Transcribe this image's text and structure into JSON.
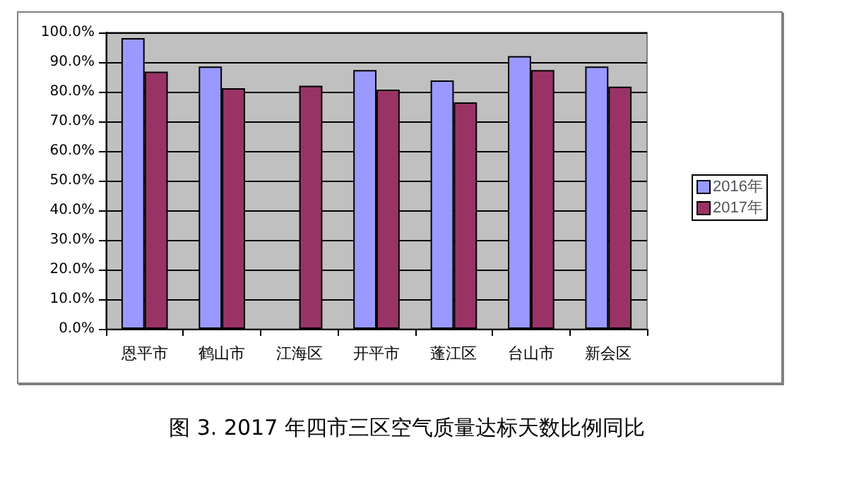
{
  "chart_data": {
    "type": "bar",
    "categories": [
      "恩平市",
      "鹤山市",
      "江海区",
      "开平市",
      "蓬江区",
      "台山市",
      "新会区"
    ],
    "series": [
      {
        "name": "2016年",
        "color": "#9999ff",
        "values": [
          98.1,
          88.5,
          null,
          87.3,
          83.8,
          92.0,
          88.5
        ]
      },
      {
        "name": "2017年",
        "color": "#993366",
        "values": [
          86.8,
          81.2,
          82.0,
          80.7,
          76.4,
          87.3,
          81.7
        ]
      }
    ],
    "ylim": [
      0,
      100
    ],
    "yticks": [
      {
        "value": 0,
        "label": "0.0%"
      },
      {
        "value": 10,
        "label": "10.0%"
      },
      {
        "value": 20,
        "label": "20.0%"
      },
      {
        "value": 30,
        "label": "30.0%"
      },
      {
        "value": 40,
        "label": "40.0%"
      },
      {
        "value": 50,
        "label": "50.0%"
      },
      {
        "value": 60,
        "label": "60.0%"
      },
      {
        "value": 70,
        "label": "70.0%"
      },
      {
        "value": 80,
        "label": "80.0%"
      },
      {
        "value": 90,
        "label": "90.0%"
      },
      {
        "value": 100,
        "label": "100.0%"
      }
    ],
    "grid": "y",
    "legend": "right",
    "annotations": [
      "图 3. 2017 年四市三区空气质量达标天数比例同比"
    ]
  }
}
